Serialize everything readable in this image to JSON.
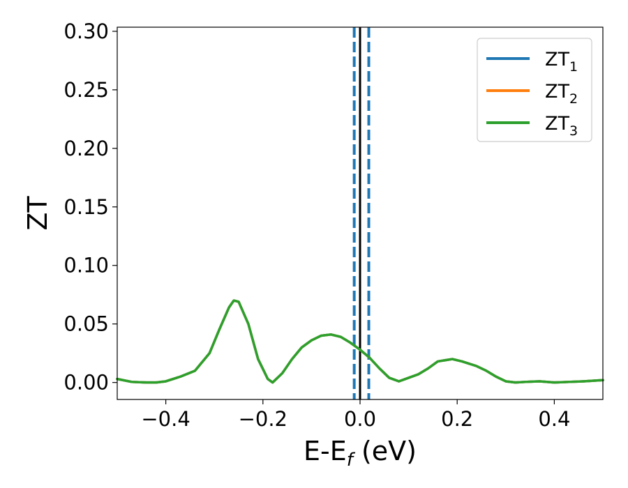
{
  "chart_data": {
    "type": "line",
    "xlabel": {
      "main": "E-E",
      "sub": "f",
      "unit": " (eV)"
    },
    "ylabel": "ZT",
    "xlim": [
      -0.5,
      0.5
    ],
    "ylim": [
      -0.0145,
      0.3035
    ],
    "x_ticks": [
      -0.4,
      -0.2,
      0.0,
      0.2,
      0.4
    ],
    "x_tick_labels": [
      "−0.4",
      "−0.2",
      "0.0",
      "0.2",
      "0.4"
    ],
    "y_ticks": [
      0.0,
      0.05,
      0.1,
      0.15,
      0.2,
      0.25,
      0.3
    ],
    "y_tick_labels": [
      "0.00",
      "0.05",
      "0.10",
      "0.15",
      "0.20",
      "0.25",
      "0.30"
    ],
    "grid": false,
    "legend_position": "top-right",
    "vlines": [
      {
        "x": -0.012,
        "color": "#1f77b4",
        "style": "dashed"
      },
      {
        "x": 0.0,
        "color": "#000000",
        "style": "solid"
      },
      {
        "x": 0.018,
        "color": "#1f77b4",
        "style": "dashed"
      }
    ],
    "x": [
      -0.5,
      -0.47,
      -0.44,
      -0.42,
      -0.4,
      -0.37,
      -0.34,
      -0.31,
      -0.29,
      -0.27,
      -0.26,
      -0.25,
      -0.23,
      -0.21,
      -0.19,
      -0.18,
      -0.16,
      -0.14,
      -0.12,
      -0.1,
      -0.08,
      -0.06,
      -0.04,
      -0.02,
      0.0,
      0.02,
      0.04,
      0.06,
      0.08,
      0.1,
      0.12,
      0.14,
      0.16,
      0.19,
      0.21,
      0.24,
      0.26,
      0.28,
      0.3,
      0.32,
      0.34,
      0.37,
      0.4,
      0.43,
      0.46,
      0.5
    ],
    "series": [
      {
        "name": "ZT",
        "sub": "1",
        "color": "#1f77b4",
        "values": [
          0.003,
          0.0005,
          0.0,
          0.0,
          0.001,
          0.005,
          0.01,
          0.025,
          0.045,
          0.064,
          0.07,
          0.069,
          0.05,
          0.02,
          0.003,
          0.0,
          0.008,
          0.02,
          0.03,
          0.036,
          0.04,
          0.041,
          0.039,
          0.034,
          0.028,
          0.021,
          0.012,
          0.004,
          0.001,
          0.004,
          0.007,
          0.012,
          0.018,
          0.02,
          0.018,
          0.014,
          0.01,
          0.005,
          0.001,
          0.0,
          0.0005,
          0.001,
          0.0,
          0.0005,
          0.001,
          0.002
        ]
      },
      {
        "name": "ZT",
        "sub": "2",
        "color": "#ff7f0e",
        "values": [
          0.003,
          0.0005,
          0.0,
          0.0,
          0.001,
          0.005,
          0.01,
          0.025,
          0.045,
          0.064,
          0.07,
          0.069,
          0.05,
          0.02,
          0.003,
          0.0,
          0.008,
          0.02,
          0.03,
          0.036,
          0.04,
          0.041,
          0.039,
          0.034,
          0.028,
          0.021,
          0.012,
          0.004,
          0.001,
          0.004,
          0.007,
          0.012,
          0.018,
          0.02,
          0.018,
          0.014,
          0.01,
          0.005,
          0.001,
          0.0,
          0.0005,
          0.001,
          0.0,
          0.0005,
          0.001,
          0.002
        ]
      },
      {
        "name": "ZT",
        "sub": "3",
        "color": "#2ca02c",
        "values": [
          0.003,
          0.0005,
          0.0,
          0.0,
          0.001,
          0.005,
          0.01,
          0.025,
          0.045,
          0.064,
          0.07,
          0.069,
          0.05,
          0.02,
          0.003,
          0.0,
          0.008,
          0.02,
          0.03,
          0.036,
          0.04,
          0.041,
          0.039,
          0.034,
          0.028,
          0.021,
          0.012,
          0.004,
          0.001,
          0.004,
          0.007,
          0.012,
          0.018,
          0.02,
          0.018,
          0.014,
          0.01,
          0.005,
          0.001,
          0.0,
          0.0005,
          0.001,
          0.0,
          0.0005,
          0.001,
          0.002
        ]
      }
    ]
  }
}
